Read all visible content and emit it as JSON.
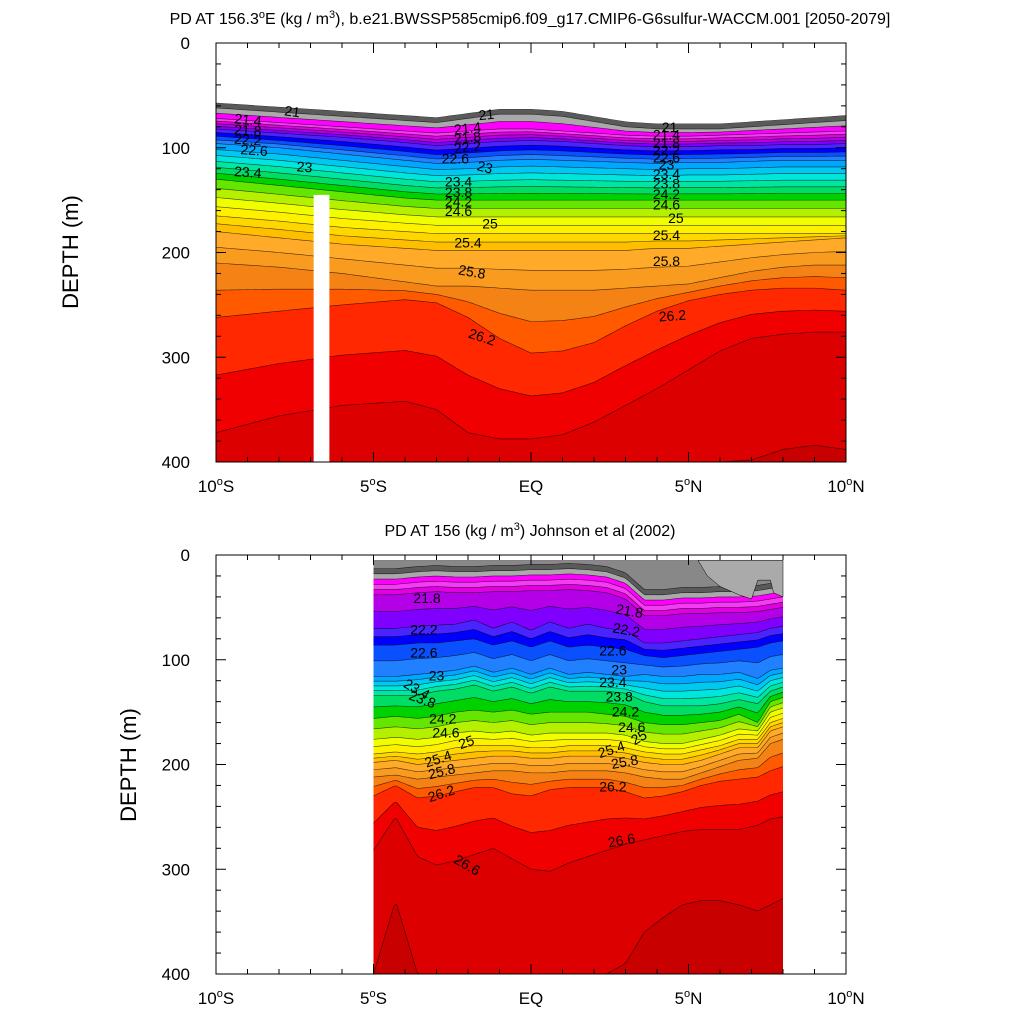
{
  "chart_data": [
    {
      "type": "contour",
      "panel": "top",
      "title": "PD AT 156.3°E (kg / m³), b.e21.BWSSP585cmip6.f09_g17.CMIP6-G6sulfur-WACCM.001 [2050-2079]",
      "title_parts": {
        "a": "PD AT 156.3",
        "sup1": "o",
        "b": "E (kg / m",
        "sup2": "3",
        "c": "), b.e21.BWSSP585cmip6.f09_g17.CMIP6-G6sulfur-WACCM.001 [2050-2079]"
      },
      "ylabel": "DEPTH (m)",
      "xlim": [
        -10,
        10
      ],
      "ylim": [
        400,
        0
      ],
      "x_ticks": [
        {
          "value": -10,
          "main": "10",
          "sup": "o",
          "suffix": "S"
        },
        {
          "value": -5,
          "main": "5",
          "sup": "o",
          "suffix": "S"
        },
        {
          "value": 0,
          "main": "EQ",
          "sup": "",
          "suffix": ""
        },
        {
          "value": 5,
          "main": "5",
          "sup": "o",
          "suffix": "N"
        },
        {
          "value": 10,
          "main": "10",
          "sup": "o",
          "suffix": "N"
        }
      ],
      "y_ticks": [
        "0",
        "100",
        "200",
        "300",
        "400"
      ],
      "contour_levels": [
        20.8,
        21.0,
        21.2,
        21.4,
        21.6,
        21.8,
        22.0,
        22.2,
        22.4,
        22.6,
        22.8,
        23.0,
        23.2,
        23.4,
        23.6,
        23.8,
        24.0,
        24.2,
        24.4,
        24.6,
        24.8,
        25.0,
        25.2,
        25.4,
        25.6,
        25.8,
        26.0,
        26.2,
        26.4,
        26.6,
        26.8
      ],
      "data_extent_x": [
        -10,
        10
      ],
      "missing_column_x": [
        -6.9,
        -6.4
      ],
      "missing_column_depth": [
        145,
        400
      ],
      "isopycnal_depths": {
        "x": [
          -10,
          -8,
          -6,
          -4,
          -3,
          -2,
          -1,
          0,
          1,
          2,
          3,
          4,
          5,
          6,
          7,
          8,
          9,
          10
        ],
        "21.0": [
          62,
          66,
          70,
          74,
          76,
          72,
          68,
          68,
          70,
          75,
          80,
          82,
          82,
          82,
          80,
          78,
          76,
          74
        ],
        "21.4": [
          72,
          76,
          80,
          84,
          86,
          84,
          82,
          82,
          84,
          86,
          88,
          89,
          89,
          88,
          87,
          86,
          85,
          84
        ],
        "22.2": [
          82,
          86,
          90,
          95,
          98,
          96,
          94,
          93,
          94,
          96,
          98,
          99,
          99,
          98,
          98,
          97,
          97,
          96
        ],
        "23.0": [
          96,
          100,
          106,
          112,
          115,
          114,
          112,
          111,
          112,
          113,
          114,
          115,
          114,
          114,
          113,
          112,
          112,
          112
        ],
        "24.2": [
          130,
          136,
          142,
          148,
          150,
          150,
          150,
          150,
          150,
          150,
          150,
          150,
          150,
          150,
          150,
          150,
          150,
          150
        ],
        "25.0": [
          165,
          170,
          176,
          180,
          182,
          182,
          182,
          182,
          182,
          182,
          182,
          182,
          182,
          182,
          182,
          182,
          182,
          182
        ],
        "25.4": [
          180,
          186,
          192,
          196,
          198,
          198,
          198,
          198,
          198,
          198,
          198,
          196,
          196,
          194,
          192,
          190,
          188,
          186
        ],
        "25.8": [
          210,
          214,
          220,
          228,
          232,
          232,
          234,
          236,
          236,
          236,
          234,
          232,
          230,
          224,
          218,
          214,
          212,
          212
        ],
        "26.2": [
          262,
          256,
          250,
          245,
          248,
          262,
          282,
          296,
          294,
          286,
          270,
          256,
          246,
          240,
          236,
          234,
          234,
          236
        ],
        "26.6": [
          372,
          356,
          346,
          342,
          350,
          372,
          378,
          378,
          374,
          362,
          346,
          330,
          312,
          294,
          282,
          278,
          276,
          276
        ],
        "26.8": [
          400,
          400,
          400,
          400,
          400,
          400,
          400,
          400,
          400,
          400,
          400,
          400,
          400,
          400,
          398,
          388,
          384,
          388
        ]
      },
      "contour_labels": [
        {
          "x": -7.6,
          "y": 70,
          "text": "21",
          "rot": 8
        },
        {
          "x": -9.0,
          "y": 78,
          "text": "21.4",
          "rot": 6
        },
        {
          "x": -9.0,
          "y": 88,
          "text": "21.8",
          "rot": 4
        },
        {
          "x": -9.0,
          "y": 97,
          "text": "22.2",
          "rot": 4
        },
        {
          "x": -8.8,
          "y": 107,
          "text": "22.6",
          "rot": 4
        },
        {
          "x": -9.0,
          "y": 128,
          "text": "23.4",
          "rot": 4
        },
        {
          "x": -7.2,
          "y": 123,
          "text": "23",
          "rot": 4
        },
        {
          "x": -1.4,
          "y": 73,
          "text": "21",
          "rot": -6
        },
        {
          "x": -2.0,
          "y": 86,
          "text": "21.4",
          "rot": -6
        },
        {
          "x": -2.0,
          "y": 95,
          "text": "21.8",
          "rot": -6
        },
        {
          "x": -2.0,
          "y": 104,
          "text": "22.2",
          "rot": -6
        },
        {
          "x": -2.4,
          "y": 115,
          "text": "22.6",
          "rot": 0
        },
        {
          "x": -1.5,
          "y": 123,
          "text": "23",
          "rot": 14
        },
        {
          "x": -2.3,
          "y": 137,
          "text": "23.4",
          "rot": 0
        },
        {
          "x": -2.3,
          "y": 147,
          "text": "23.8",
          "rot": 0
        },
        {
          "x": -2.3,
          "y": 156,
          "text": "24.2",
          "rot": 0
        },
        {
          "x": -2.3,
          "y": 165,
          "text": "24.6",
          "rot": 0
        },
        {
          "x": -1.3,
          "y": 177,
          "text": "25",
          "rot": 0
        },
        {
          "x": -2.0,
          "y": 195,
          "text": "25.4",
          "rot": 0
        },
        {
          "x": -1.9,
          "y": 223,
          "text": "25.8",
          "rot": 10
        },
        {
          "x": -1.6,
          "y": 285,
          "text": "26.2",
          "rot": 18
        },
        {
          "x": 4.4,
          "y": 85,
          "text": "21",
          "rot": 0
        },
        {
          "x": 4.3,
          "y": 92,
          "text": "21.4",
          "rot": 0
        },
        {
          "x": 4.3,
          "y": 100,
          "text": "21.8",
          "rot": 0
        },
        {
          "x": 4.3,
          "y": 107,
          "text": "22.2",
          "rot": 0
        },
        {
          "x": 4.3,
          "y": 114,
          "text": "22.6",
          "rot": 0
        },
        {
          "x": 4.3,
          "y": 121,
          "text": "23",
          "rot": 0
        },
        {
          "x": 4.3,
          "y": 130,
          "text": "23.4",
          "rot": 0
        },
        {
          "x": 4.3,
          "y": 139,
          "text": "23.8",
          "rot": 0
        },
        {
          "x": 4.3,
          "y": 149,
          "text": "24.2",
          "rot": 0
        },
        {
          "x": 4.3,
          "y": 159,
          "text": "24.6",
          "rot": 0
        },
        {
          "x": 4.6,
          "y": 172,
          "text": "25",
          "rot": 0
        },
        {
          "x": 4.3,
          "y": 188,
          "text": "25.4",
          "rot": 0
        },
        {
          "x": 4.3,
          "y": 213,
          "text": "25.8",
          "rot": 0
        },
        {
          "x": 4.5,
          "y": 265,
          "text": "26.2",
          "rot": -4
        }
      ]
    },
    {
      "type": "contour",
      "panel": "bottom",
      "title": "PD AT 156 (kg / m³) Johnson et al (2002)",
      "title_parts": {
        "a": "PD AT 156 (kg / m",
        "sup1": "3",
        "b": ") Johnson et al (2002)"
      },
      "ylabel": "DEPTH (m)",
      "xlim": [
        -10,
        10
      ],
      "ylim": [
        400,
        0
      ],
      "x_ticks": [
        {
          "value": -10,
          "main": "10",
          "sup": "o",
          "suffix": "S"
        },
        {
          "value": -5,
          "main": "5",
          "sup": "o",
          "suffix": "S"
        },
        {
          "value": 0,
          "main": "EQ",
          "sup": "",
          "suffix": ""
        },
        {
          "value": 5,
          "main": "5",
          "sup": "o",
          "suffix": "N"
        },
        {
          "value": 10,
          "main": "10",
          "sup": "o",
          "suffix": "N"
        }
      ],
      "y_ticks": [
        "0",
        "100",
        "200",
        "300",
        "400"
      ],
      "contour_levels": [
        20.8,
        21.0,
        21.2,
        21.4,
        21.6,
        21.8,
        22.0,
        22.2,
        22.4,
        22.6,
        22.8,
        23.0,
        23.2,
        23.4,
        23.6,
        23.8,
        24.0,
        24.2,
        24.4,
        24.6,
        24.8,
        25.0,
        25.2,
        25.4,
        25.6,
        25.8,
        26.0,
        26.2,
        26.4,
        26.6,
        26.8
      ],
      "data_extent_x": [
        -5,
        8
      ],
      "data_extent_depth": [
        5,
        400
      ],
      "isopycnal_depths": {
        "x": [
          -5,
          -4.3,
          -3.6,
          -3.0,
          -2.4,
          -1.8,
          -1.2,
          -0.6,
          0,
          0.6,
          1.2,
          1.8,
          2.4,
          3.0,
          3.6,
          4.2,
          4.8,
          5.4,
          6.0,
          6.6,
          7.2,
          7.6,
          8.0
        ],
        "21.8": [
          38,
          38,
          36,
          35,
          36,
          36,
          35,
          35,
          34,
          34,
          33,
          34,
          36,
          42,
          58,
          58,
          56,
          56,
          55,
          55,
          54,
          52,
          50
        ],
        "22.2": [
          70,
          70,
          68,
          67,
          66,
          62,
          70,
          64,
          72,
          64,
          70,
          66,
          70,
          72,
          84,
          84,
          82,
          80,
          78,
          76,
          74,
          70,
          68
        ],
        "22.6": [
          86,
          86,
          84,
          84,
          82,
          80,
          86,
          82,
          88,
          82,
          88,
          86,
          88,
          90,
          96,
          98,
          96,
          94,
          92,
          90,
          88,
          84,
          82
        ],
        "23.0": [
          116,
          116,
          114,
          112,
          110,
          106,
          112,
          108,
          114,
          108,
          114,
          112,
          114,
          116,
          114,
          116,
          116,
          114,
          114,
          112,
          118,
          110,
          108
        ],
        "23.8": [
          134,
          134,
          134,
          130,
          128,
          124,
          130,
          126,
          132,
          126,
          130,
          130,
          130,
          132,
          140,
          144,
          144,
          144,
          142,
          138,
          142,
          130,
          126
        ],
        "24.2": [
          156,
          154,
          156,
          154,
          150,
          148,
          150,
          148,
          152,
          150,
          150,
          150,
          152,
          154,
          160,
          162,
          162,
          160,
          158,
          152,
          160,
          140,
          136
        ],
        "24.6": [
          176,
          174,
          176,
          174,
          170,
          168,
          170,
          168,
          172,
          170,
          170,
          170,
          170,
          172,
          178,
          180,
          180,
          176,
          172,
          166,
          168,
          150,
          146
        ],
        "25.0": [
          190,
          188,
          190,
          188,
          184,
          182,
          182,
          182,
          184,
          184,
          182,
          182,
          182,
          184,
          188,
          190,
          190,
          186,
          182,
          176,
          176,
          160,
          156
        ],
        "25.4": [
          198,
          196,
          200,
          198,
          196,
          194,
          192,
          192,
          194,
          194,
          192,
          192,
          192,
          194,
          198,
          200,
          200,
          196,
          190,
          184,
          184,
          168,
          164
        ],
        "25.8": [
          212,
          210,
          214,
          212,
          210,
          208,
          206,
          206,
          208,
          208,
          206,
          206,
          206,
          208,
          212,
          214,
          214,
          208,
          202,
          196,
          194,
          180,
          176
        ],
        "26.2": [
          230,
          220,
          232,
          230,
          226,
          222,
          222,
          228,
          230,
          224,
          222,
          222,
          222,
          226,
          232,
          230,
          226,
          220,
          216,
          214,
          212,
          206,
          202
        ],
        "26.6": [
          282,
          250,
          288,
          296,
          292,
          286,
          280,
          290,
          300,
          302,
          294,
          288,
          282,
          276,
          272,
          268,
          264,
          262,
          262,
          262,
          258,
          252,
          250
        ],
        "26.8": [
          400,
          330,
          400,
          400,
          400,
          400,
          400,
          400,
          400,
          400,
          400,
          400,
          400,
          390,
          360,
          346,
          334,
          330,
          330,
          334,
          340,
          334,
          328
        ]
      },
      "contour_labels": [
        {
          "x": -3.3,
          "y": 46,
          "text": "21.8",
          "rot": 0
        },
        {
          "x": -3.4,
          "y": 76,
          "text": "22.2",
          "rot": 0
        },
        {
          "x": -3.4,
          "y": 98,
          "text": "22.6",
          "rot": 0
        },
        {
          "x": -3.0,
          "y": 120,
          "text": "23",
          "rot": 0
        },
        {
          "x": -3.7,
          "y": 132,
          "text": "23.4",
          "rot": 30
        },
        {
          "x": -3.5,
          "y": 142,
          "text": "23.8",
          "rot": 20
        },
        {
          "x": -2.8,
          "y": 161,
          "text": "24.2",
          "rot": 0
        },
        {
          "x": -2.7,
          "y": 174,
          "text": "24.6",
          "rot": 0
        },
        {
          "x": -2.0,
          "y": 183,
          "text": "25",
          "rot": -20
        },
        {
          "x": -2.9,
          "y": 199,
          "text": "25.4",
          "rot": -18
        },
        {
          "x": -2.8,
          "y": 211,
          "text": "25.8",
          "rot": -14
        },
        {
          "x": -2.8,
          "y": 232,
          "text": "26.2",
          "rot": -18
        },
        {
          "x": -2.1,
          "y": 300,
          "text": "26.6",
          "rot": 30
        },
        {
          "x": 3.1,
          "y": 58,
          "text": "21.8",
          "rot": 10
        },
        {
          "x": 3.0,
          "y": 76,
          "text": "22.2",
          "rot": 10
        },
        {
          "x": 2.6,
          "y": 96,
          "text": "22.6",
          "rot": 0
        },
        {
          "x": 2.8,
          "y": 114,
          "text": "23",
          "rot": 0
        },
        {
          "x": 2.6,
          "y": 126,
          "text": "23.4",
          "rot": 0
        },
        {
          "x": 2.8,
          "y": 140,
          "text": "23.8",
          "rot": 0
        },
        {
          "x": 3.0,
          "y": 154,
          "text": "24.2",
          "rot": 0
        },
        {
          "x": 3.2,
          "y": 169,
          "text": "24.6",
          "rot": 0
        },
        {
          "x": 3.5,
          "y": 178,
          "text": "25",
          "rot": -30
        },
        {
          "x": 2.6,
          "y": 190,
          "text": "25.4",
          "rot": -18
        },
        {
          "x": 3.0,
          "y": 202,
          "text": "25.8",
          "rot": -10
        },
        {
          "x": 2.6,
          "y": 226,
          "text": "26.2",
          "rot": 0
        },
        {
          "x": 2.9,
          "y": 277,
          "text": "26.6",
          "rot": -10
        }
      ]
    }
  ],
  "colors": {
    "21.0": "#5a5a5a",
    "21.2": "#a9a9a9",
    "21.4": "#ff00ff",
    "21.6": "#f53cf5",
    "21.8": "#e000e0",
    "22.0": "#b300e6",
    "22.2": "#8000ff",
    "22.4": "#4a24ff",
    "22.6": "#0000ff",
    "22.8": "#0a50ff",
    "23.0": "#2080ff",
    "23.2": "#00a6ff",
    "23.4": "#00c8f0",
    "23.6": "#00e6dc",
    "23.8": "#00e6a0",
    "24.0": "#00dc64",
    "24.2": "#00d200",
    "24.4": "#64e600",
    "24.6": "#b4f000",
    "24.8": "#f0ff00",
    "25.0": "#fff000",
    "25.2": "#ffd700",
    "25.4": "#ffbe00",
    "25.6": "#ffaa28",
    "25.8": "#f99b1e",
    "26.0": "#f58214",
    "26.2": "#ff5a00",
    "26.4": "#ff2800",
    "26.6": "#f00000",
    "26.8": "#dc0000",
    "27.0": "#c80000",
    "missing": "#ffffff",
    "land": "#aaaaaa",
    "axis": "#000000"
  }
}
